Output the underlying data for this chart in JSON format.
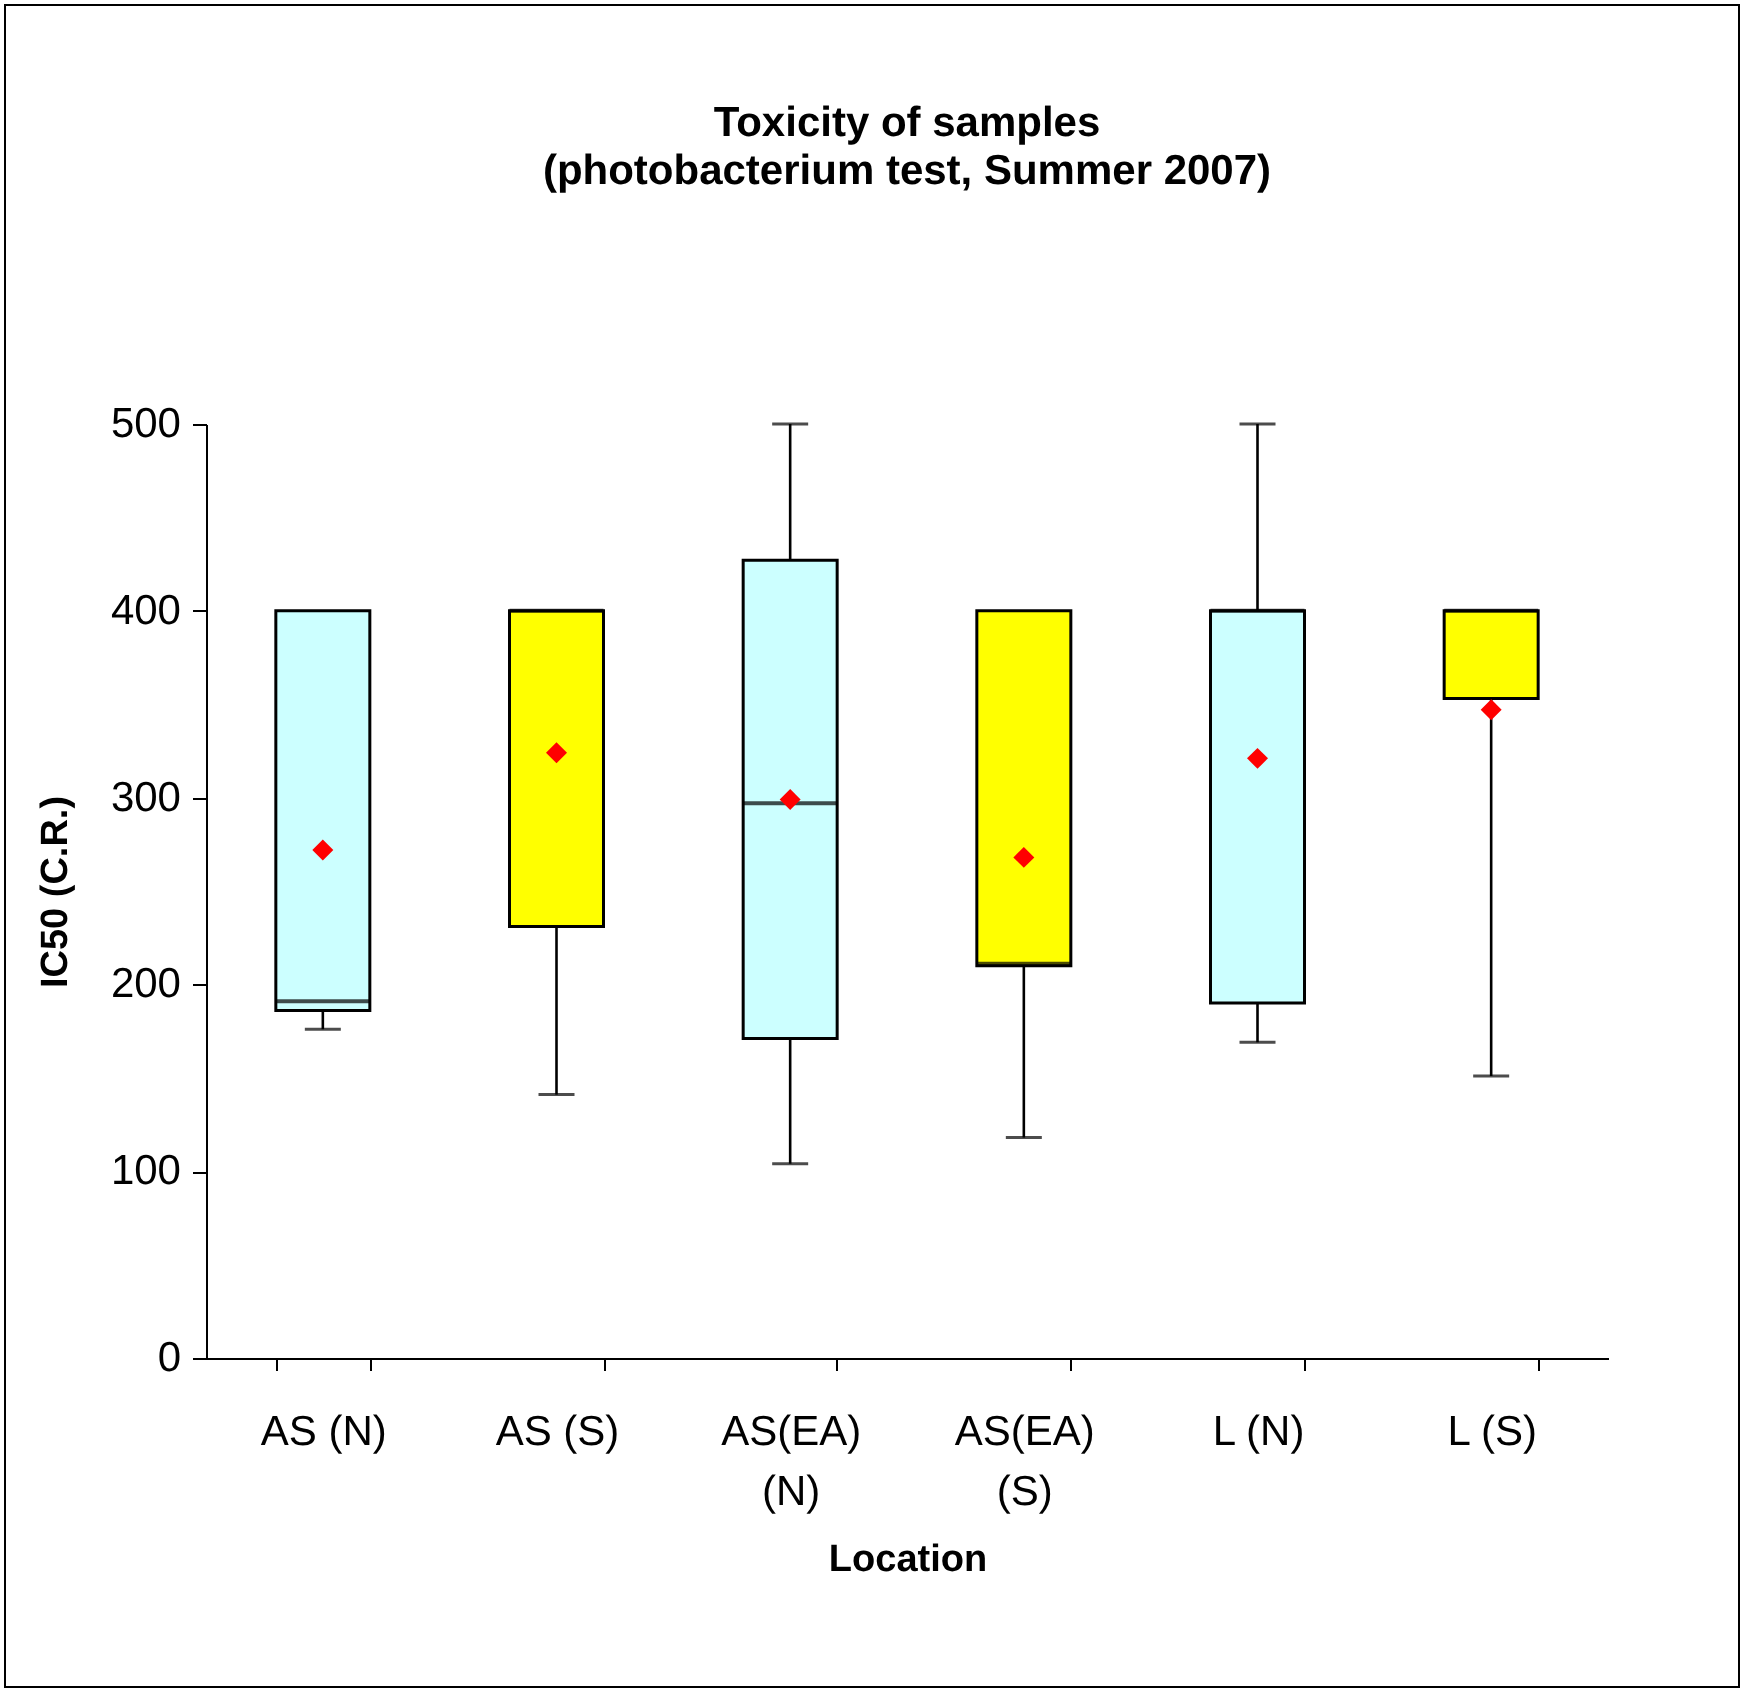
{
  "chart_data": {
    "type": "box",
    "title": "Toxicity of samples",
    "subtitle": "(photobacterium test, Summer 2007)",
    "xlabel": "Location",
    "ylabel": "IC50 (C.R.)",
    "categories": [
      "AS (N)",
      "AS (S)",
      "AS(EA) (N)",
      "AS(EA) (S)",
      "L (N)",
      "L (S)"
    ],
    "colors": [
      "#ccffff",
      "#ffff00",
      "#ccffff",
      "#ffff00",
      "#ccffff",
      "#ffff00"
    ],
    "boxes": [
      {
        "low": 176,
        "q1": 186,
        "median": 191,
        "q3": 400,
        "high": 400,
        "mean": 272
      },
      {
        "low": 141,
        "q1": 231,
        "median": 400,
        "q3": 400,
        "high": 400,
        "mean": 324
      },
      {
        "low": 104,
        "q1": 171,
        "median": 297,
        "q3": 427,
        "high": 500,
        "mean": 299
      },
      {
        "low": 118,
        "q1": 210,
        "median": 211,
        "q3": 400,
        "high": 400,
        "mean": 268
      },
      {
        "low": 169,
        "q1": 190,
        "median": 400,
        "q3": 400,
        "high": 500,
        "mean": 321
      },
      {
        "low": 151,
        "q1": 353,
        "median": 400,
        "q3": 400,
        "high": 400,
        "mean": 347
      }
    ],
    "ylim": [
      0,
      500
    ],
    "yticks": [
      0,
      100,
      200,
      300,
      400,
      500
    ],
    "grid": false,
    "legend": false,
    "marker": "diamond"
  }
}
